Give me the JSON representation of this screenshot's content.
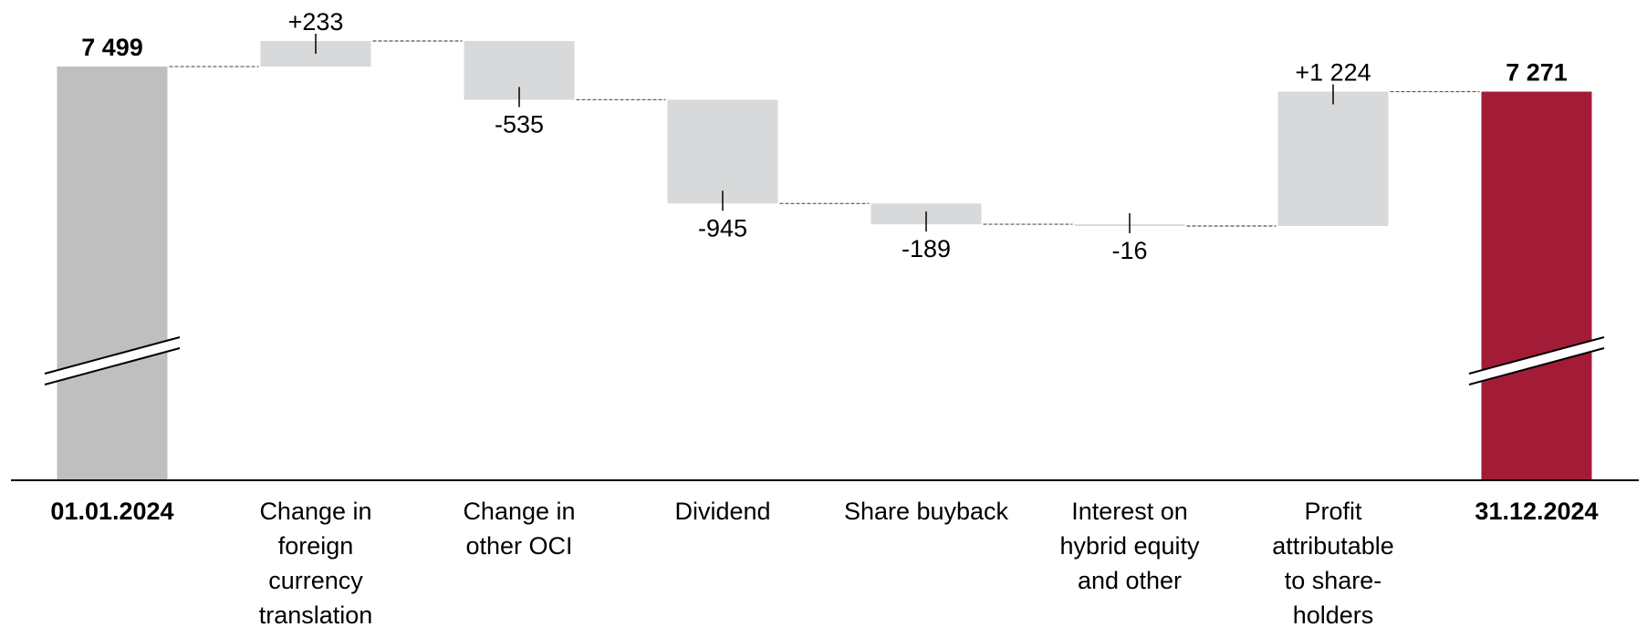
{
  "chart_data": {
    "type": "waterfall",
    "categories": [
      "01.01.2024",
      "Change in\nforeign\ncurrency\ntranslation",
      "Change in\nother OCI",
      "Dividend",
      "Share buyback",
      "Interest on\nhybrid equity\nand other",
      "Profit\nattributable\nto share-\nholders",
      "31.12.2024"
    ],
    "values": [
      7499,
      233,
      -535,
      -945,
      -189,
      -16,
      1224,
      7271
    ],
    "value_labels": [
      "7 499",
      "+233",
      "-535",
      "-945",
      "-189",
      "-16",
      "+1 224",
      "7 271"
    ],
    "is_total": [
      true,
      false,
      false,
      false,
      false,
      false,
      false,
      true
    ],
    "colors": [
      "#bfbfbf",
      "#d8d9da",
      "#d8d9da",
      "#d8d9da",
      "#d8d9da",
      "#d8d9da",
      "#d8d9da",
      "#a31c37"
    ],
    "axis_break": true
  }
}
